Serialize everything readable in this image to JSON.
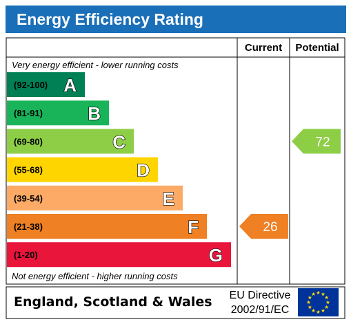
{
  "title": "Energy Efficiency Rating",
  "columns": {
    "current": "Current",
    "potential": "Potential"
  },
  "top_note": "Very energy efficient - lower running costs",
  "bottom_note": "Not energy efficient - higher running costs",
  "footer": {
    "region": "England, Scotland & Wales",
    "directive_line1": "EU Directive",
    "directive_line2": "2002/91/EC"
  },
  "chart_data": {
    "type": "table",
    "bands": [
      {
        "letter": "A",
        "range": "(92-100)",
        "min": 92,
        "max": 100,
        "color": "#008054"
      },
      {
        "letter": "B",
        "range": "(81-91)",
        "min": 81,
        "max": 91,
        "color": "#19b459"
      },
      {
        "letter": "C",
        "range": "(69-80)",
        "min": 69,
        "max": 80,
        "color": "#8dce46"
      },
      {
        "letter": "D",
        "range": "(55-68)",
        "min": 55,
        "max": 68,
        "color": "#ffd500"
      },
      {
        "letter": "E",
        "range": "(39-54)",
        "min": 39,
        "max": 54,
        "color": "#fcaa65"
      },
      {
        "letter": "F",
        "range": "(21-38)",
        "min": 21,
        "max": 38,
        "color": "#ef8023"
      },
      {
        "letter": "G",
        "range": "(1-20)",
        "min": 1,
        "max": 20,
        "color": "#e9153b"
      }
    ],
    "current": {
      "value": 26,
      "band": "F",
      "color": "#ef8023"
    },
    "potential": {
      "value": 72,
      "band": "C",
      "color": "#8dce46"
    }
  },
  "colors": {
    "title_bar": "#1a6fb9",
    "eu_flag": "#003399",
    "eu_stars": "#ffdd00"
  }
}
